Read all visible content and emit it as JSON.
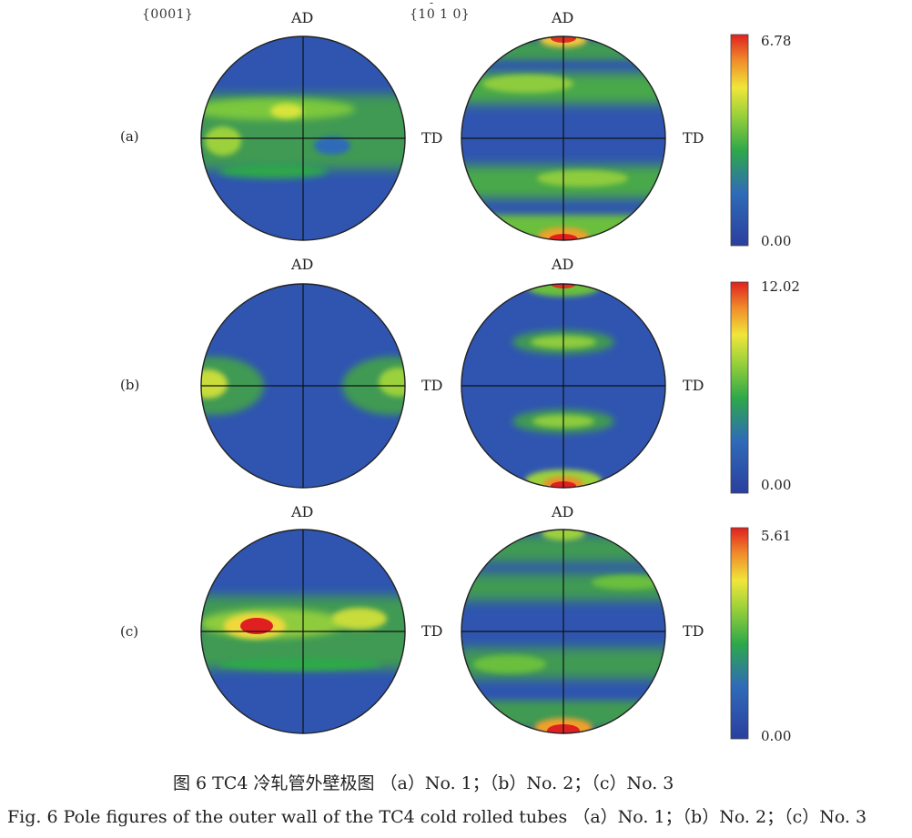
{
  "headers": {
    "left": "{0001}",
    "right": "{10 1 0}",
    "right_bar": "-"
  },
  "axis_labels": {
    "ad": "AD",
    "td": "TD"
  },
  "rows": [
    {
      "label": "(a)",
      "colorbar": {
        "max": "6.78",
        "min": "0.00"
      }
    },
    {
      "label": "(b)",
      "colorbar": {
        "max": "12.02",
        "min": "0.00"
      }
    },
    {
      "label": "(c)",
      "colorbar": {
        "max": "5.61",
        "min": "0.00"
      }
    }
  ],
  "colorscale": [
    "#2a3f9e",
    "#2f6bb8",
    "#2ea84a",
    "#9bd13a",
    "#f0e63a",
    "#f08a2a",
    "#e02020"
  ],
  "caption": {
    "cn": "图 6   TC4 冷轧管外壁极图   （a）No. 1；（b）No. 2；（c）No. 3",
    "en": "Fig. 6   Pole figures of the outer wall of the TC4 cold rolled tubes   （a）No. 1；（b）No. 2；（c）No. 3"
  }
}
